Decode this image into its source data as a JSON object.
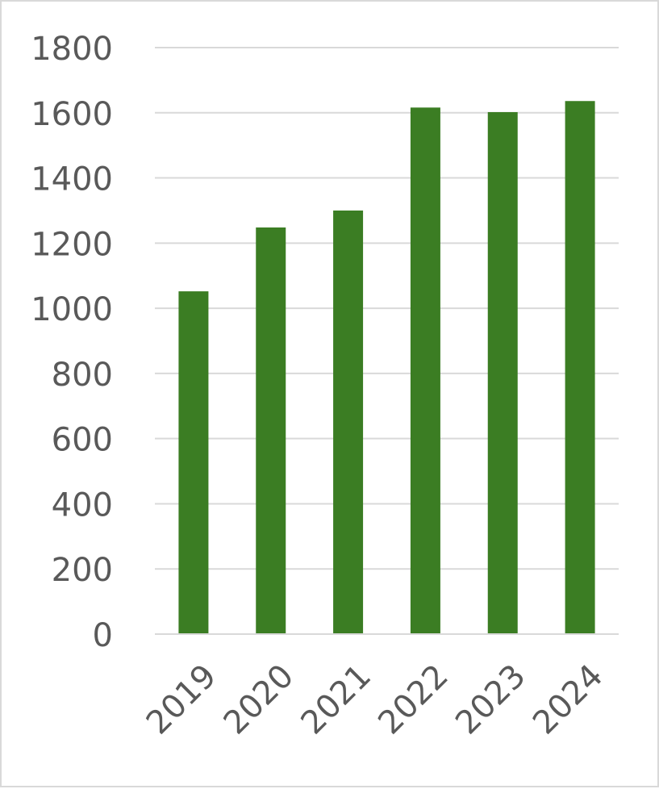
{
  "chart_data": {
    "type": "bar",
    "categories": [
      "2019",
      "2020",
      "2021",
      "2022",
      "2023",
      "2024"
    ],
    "series": [
      {
        "values": [
          1052,
          1248,
          1300,
          1616,
          1602,
          1636
        ]
      }
    ],
    "ylim": [
      0,
      1800
    ],
    "yticks": [
      0,
      200,
      400,
      600,
      800,
      1000,
      1200,
      1400,
      1600,
      1800
    ],
    "ytick_labels": [
      "0",
      "200",
      "400",
      "600",
      "800",
      "1000",
      "1200",
      "1400",
      "1600",
      "1800"
    ],
    "grid": true,
    "legend": "none",
    "x_tick_rotation": "-45",
    "colors": {
      "bar": "#3b7d23",
      "grid": "#d9d9d9",
      "text": "#595959",
      "border": "#d9d9d9"
    }
  }
}
